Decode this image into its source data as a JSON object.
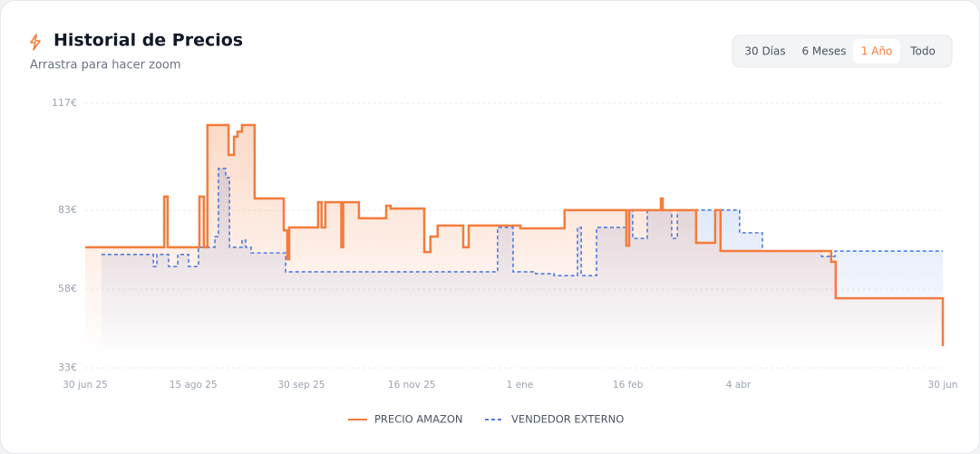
{
  "chart_data": {
    "type": "step",
    "title": "Historial de Precios",
    "subtitle": "Arrastra para hacer zoom",
    "range_buttons": [
      "30 Días",
      "6 Meses",
      "1 Año",
      "Todo"
    ],
    "active_range": 2,
    "xlim": [
      0,
      365
    ],
    "xticks": [
      {
        "value": 0,
        "label": "30 jun 25"
      },
      {
        "value": 46,
        "label": "15 ago 25"
      },
      {
        "value": 92,
        "label": "30 sep 25"
      },
      {
        "value": 139,
        "label": "16 nov 25"
      },
      {
        "value": 185,
        "label": "1 ene"
      },
      {
        "value": 231,
        "label": "16 feb"
      },
      {
        "value": 278,
        "label": "4 abr"
      },
      {
        "value": 365,
        "label": "30 jun"
      }
    ],
    "ylim": [
      33,
      117
    ],
    "yticks": [
      {
        "value": 33,
        "label": "33€"
      },
      {
        "value": 58,
        "label": "58€"
      },
      {
        "value": 83,
        "label": "83€"
      },
      {
        "value": 117,
        "label": "117€"
      }
    ],
    "grid": true,
    "series": [
      {
        "name": "PRECIO AMAZON",
        "color": "#f47c3c",
        "dashed": false,
        "x": [
          0,
          33.6,
          35.1,
          48.6,
          50.5,
          52,
          61,
          63.3,
          64.8,
          66.7,
          72.1,
          84.5,
          86,
          86.8,
          99.1,
          100.6,
          102.2,
          109,
          109.8,
          116.5,
          128.1,
          130,
          144.3,
          146.9,
          150,
          160.9,
          163.2,
          185.2,
          204,
          230.3,
          231.5,
          245,
          245.8,
          260,
          268.1,
          270.4,
          317.5,
          319.4,
          365
        ],
        "values": [
          71.3,
          87.4,
          71.3,
          87.4,
          71.3,
          110.1,
          100.6,
          106.4,
          108,
          110.1,
          86.8,
          76.7,
          67.5,
          77.6,
          85.6,
          77.6,
          85.6,
          71.3,
          85.6,
          80.5,
          84.5,
          83.6,
          69.8,
          74.7,
          78.2,
          71.3,
          78.2,
          77.3,
          83.1,
          71.8,
          83.1,
          86.8,
          83.1,
          72.7,
          83.1,
          70.1,
          66.7,
          55.1,
          39.9
        ]
      },
      {
        "name": "VENDEDOR EXTERNO",
        "color": "#4f7be0",
        "dashed": true,
        "x": [
          6.9,
          29,
          30.5,
          35.5,
          39.4,
          44,
          48.2,
          55.2,
          56.7,
          59.8,
          61.4,
          66.7,
          68.3,
          70.6,
          85.3,
          175.5,
          182.1,
          191.7,
          199.5,
          209.5,
          211.1,
          217.6,
          230.3,
          233,
          239.2,
          249.6,
          252,
          278.5,
          288.2,
          313.3,
          319.1,
          365
        ],
        "values": [
          69,
          65.2,
          69,
          65.2,
          69,
          65.2,
          71.3,
          74.7,
          96.3,
          93.4,
          71.3,
          73.6,
          71.3,
          69.5,
          63.5,
          77.6,
          63.5,
          62.9,
          62.3,
          77.6,
          62.3,
          77.6,
          83.1,
          74.1,
          83.1,
          74.1,
          83.1,
          75.9,
          70.1,
          68.4,
          70.1,
          70.1
        ]
      }
    ]
  }
}
